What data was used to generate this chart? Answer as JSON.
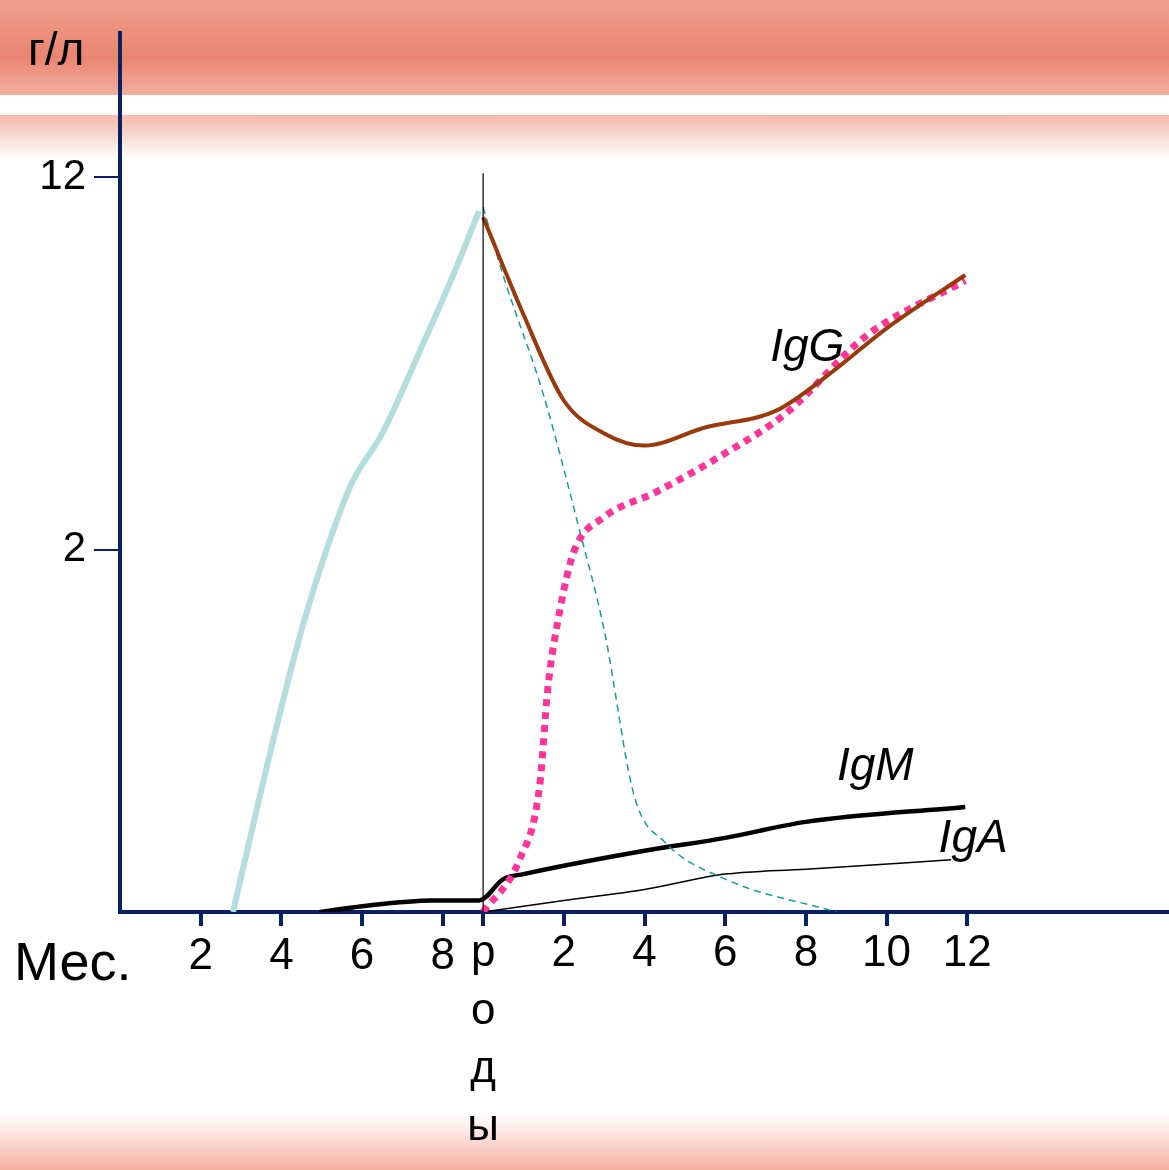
{
  "chart_data": {
    "type": "line",
    "ylabel": "г/л",
    "xlabel": "Мес.",
    "log": true,
    "xlim": [
      0,
      26
    ],
    "xticks": [
      2,
      4,
      6,
      8
    ],
    "x2lim": [
      -9,
      17
    ],
    "x2ticks": [
      {
        "value": 0,
        "label": "роды"
      },
      2,
      4,
      6,
      8,
      10,
      12
    ],
    "ylim": [
      0.35,
      24
    ],
    "yticks": [
      2,
      12
    ],
    "grid": false,
    "legend": false,
    "marker": "none",
    "series": [
      {
        "color": "#b4dde0",
        "line_style": "solid",
        "x": [
          2.8,
          3.75,
          4.5,
          5.1,
          5.75,
          6.5,
          7.5,
          8.25,
          8.9
        ],
        "values": [
          0.35,
          0.77,
          1.36,
          1.98,
          2.76,
          3.5,
          5.36,
          7.47,
          10.2
        ]
      },
      {
        "name": "IgG",
        "color": "#9a3a0a",
        "line_style": "solid",
        "axis": "x2",
        "x": [
          0,
          1,
          2,
          3,
          4,
          5.5,
          7.25,
          8.5,
          10,
          11.95
        ],
        "values": [
          9.9,
          6.2,
          4.1,
          3.5,
          3.3,
          3.6,
          3.9,
          4.6,
          5.8,
          7.5
        ]
      },
      {
        "color": "#ff3399",
        "line_style": "dotted",
        "axis": "x2",
        "x": [
          0,
          0.9,
          1.4,
          1.6,
          1.9,
          2.25,
          3,
          4.25,
          6,
          7.5,
          9.5,
          11.95
        ],
        "values": [
          0.35,
          0.45,
          0.64,
          1.02,
          1.49,
          1.98,
          2.34,
          2.63,
          3.18,
          3.85,
          5.6,
          7.3
        ]
      },
      {
        "color": "#169c9c",
        "line_style": "dashed",
        "axis": "x2",
        "x": [
          0,
          0.5,
          1.5,
          2.4,
          3,
          3.75,
          4.5,
          6,
          8.75
        ],
        "values": [
          10.4,
          7.47,
          4.2,
          2.18,
          1.36,
          0.61,
          0.49,
          0.41,
          0.35
        ]
      },
      {
        "name": "IgM",
        "color": "#000000",
        "line_style": "solid",
        "axis": "x2",
        "x": [
          -4.05,
          -3,
          -1.25,
          -0.1,
          0.5,
          1,
          4,
          6,
          8,
          11.95
        ],
        "values": [
          0.35,
          0.36,
          0.37,
          0.37,
          0.41,
          0.42,
          0.47,
          0.5,
          0.54,
          0.58
        ]
      },
      {
        "name": "IgA",
        "color": "#000000",
        "line_style": "solid",
        "axis": "x2",
        "x": [
          0,
          2,
          4,
          6,
          8,
          11.6
        ],
        "values": [
          0.35,
          0.37,
          0.39,
          0.42,
          0.43,
          0.45
        ]
      }
    ],
    "ref_lines": [
      {
        "axis": "x",
        "value": 9,
        "color": "#000000"
      }
    ]
  }
}
